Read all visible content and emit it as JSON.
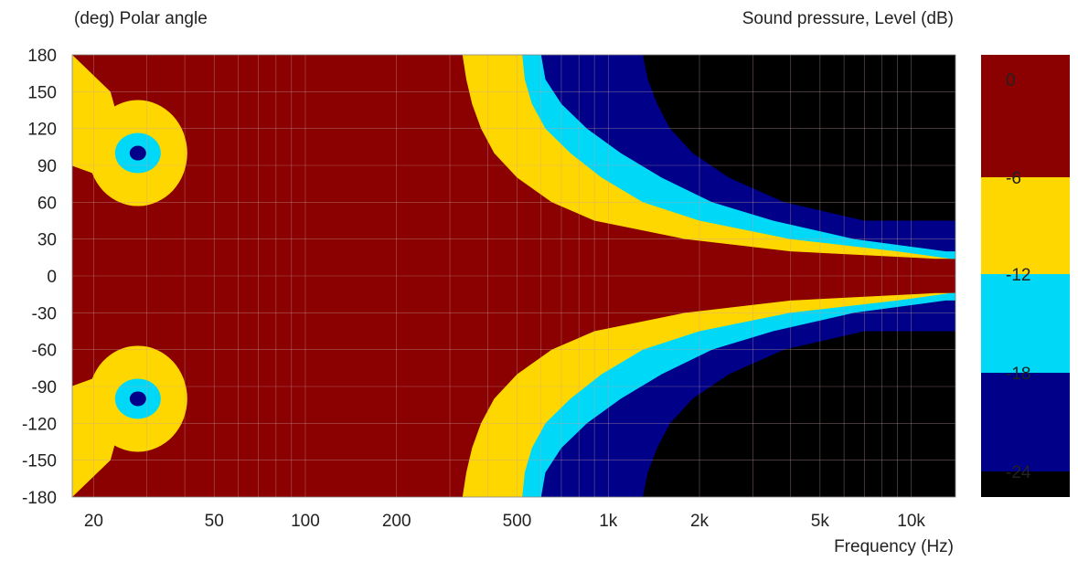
{
  "chart_data": {
    "type": "heatmap",
    "subtype": "filled-contour directivity map",
    "ylabel": "(deg)  Polar angle",
    "xlabel": "Frequency  (Hz)",
    "colorbar_label": "Sound pressure, Level  (dB)",
    "x_scale": "log",
    "xlim": [
      17,
      14000
    ],
    "ylim": [
      -180,
      180
    ],
    "grid": true,
    "x_ticks": [
      20,
      50,
      100,
      200,
      500,
      1000,
      2000,
      5000,
      10000
    ],
    "x_tick_labels": [
      "20",
      "50",
      "100",
      "200",
      "500",
      "1k",
      "2k",
      "5k",
      "10k"
    ],
    "y_ticks": [
      180,
      150,
      120,
      90,
      60,
      30,
      0,
      -30,
      -60,
      -90,
      -120,
      -150,
      -180
    ],
    "levels": [
      {
        "label": "0",
        "range": [
          -6,
          0
        ],
        "color": "#8b0000"
      },
      {
        "label": "-6",
        "range": [
          -12,
          -6
        ],
        "color": "#ffd700"
      },
      {
        "label": "-12",
        "range": [
          -18,
          -12
        ],
        "color": "#00d8f8"
      },
      {
        "label": "-18",
        "range": [
          -24,
          -18
        ],
        "color": "#000088"
      },
      {
        "label": "-24",
        "range": [
          -30,
          -24
        ],
        "color": "#000000"
      }
    ],
    "contour_boundaries": [
      {
        "level": "-6",
        "angle_deg": [
          180,
          160,
          140,
          120,
          100,
          80,
          60,
          45,
          30,
          20,
          14
        ],
        "freq_hz": [
          330,
          340,
          355,
          380,
          420,
          500,
          650,
          900,
          1800,
          4000,
          12000
        ]
      },
      {
        "level": "-12",
        "angle_deg": [
          180,
          160,
          140,
          120,
          100,
          80,
          60,
          45,
          30,
          20,
          14
        ],
        "freq_hz": [
          520,
          530,
          560,
          620,
          750,
          950,
          1300,
          2000,
          4000,
          9000,
          13500
        ]
      },
      {
        "level": "-18",
        "angle_deg": [
          180,
          160,
          140,
          120,
          100,
          80,
          60,
          45,
          30,
          20
        ],
        "freq_hz": [
          600,
          620,
          700,
          850,
          1100,
          1500,
          2200,
          3500,
          6500,
          13000
        ]
      },
      {
        "level": "-24",
        "angle_deg": [
          180,
          160,
          140,
          120,
          100,
          80,
          60,
          45
        ],
        "freq_hz": [
          1300,
          1350,
          1450,
          1600,
          1900,
          2500,
          3800,
          7000
        ]
      }
    ],
    "low_frequency_nulls": [
      {
        "freq_hz": 28,
        "angle_deg": 100
      },
      {
        "freq_hz": 28,
        "angle_deg": -100
      }
    ]
  }
}
